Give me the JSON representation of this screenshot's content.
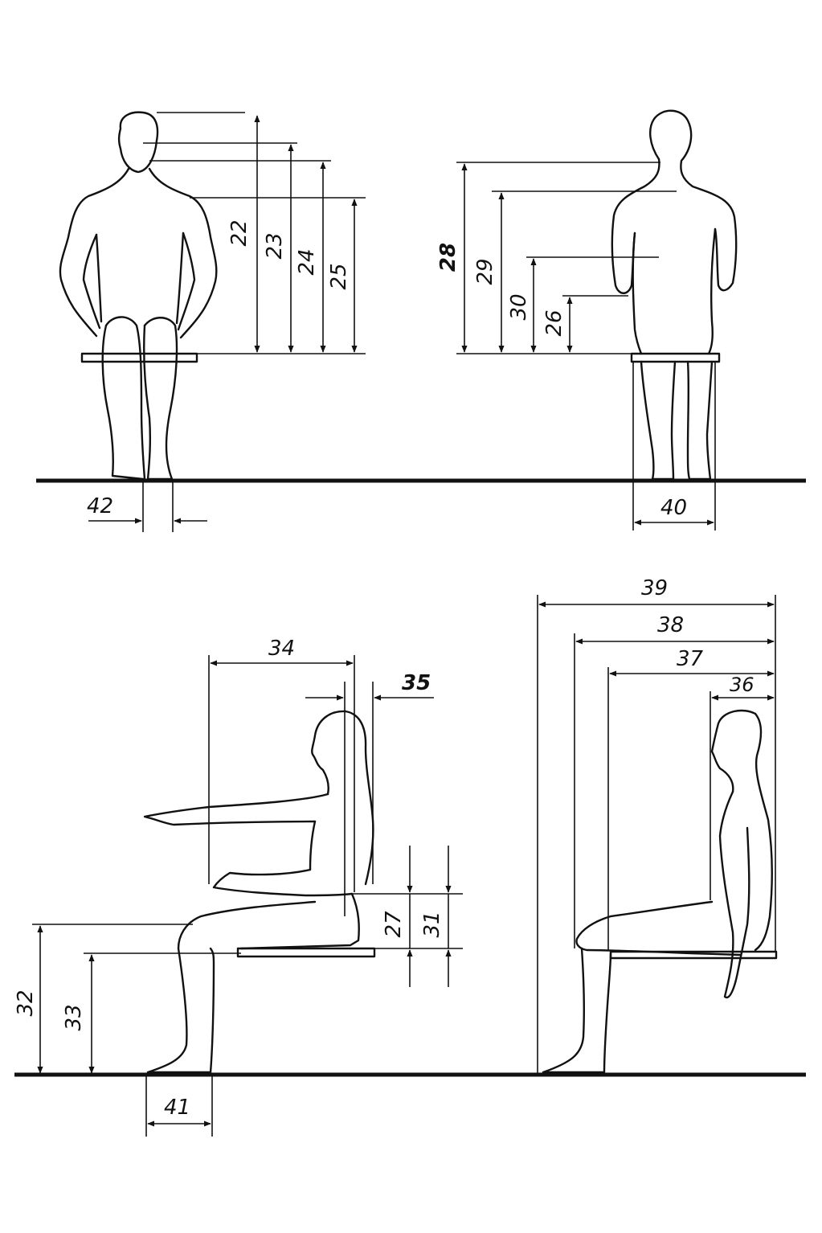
{
  "labels": {
    "d22": "22",
    "d23": "23",
    "d24": "24",
    "d25": "25",
    "d28": "28",
    "d29": "29",
    "d30": "30",
    "d26": "26",
    "d42": "42",
    "d40": "40",
    "d34": "34",
    "d35": "35",
    "d27": "27",
    "d31": "31",
    "d32": "32",
    "d33": "33",
    "d41": "41",
    "d39": "39",
    "d38": "38",
    "d37": "37",
    "d36": "36"
  }
}
